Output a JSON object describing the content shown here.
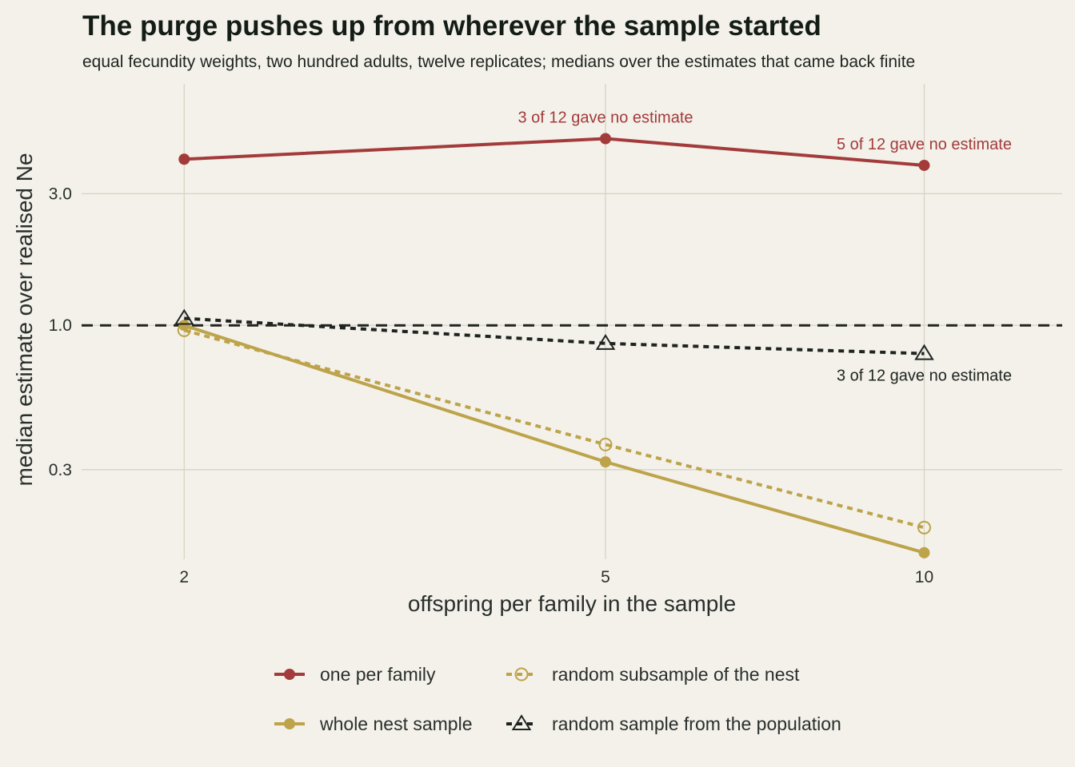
{
  "title": "The purge pushes up from wherever the sample started",
  "subtitle": "equal fecundity weights, two hundred adults, twelve replicates; medians over the estimates that came back finite",
  "chart_data": {
    "type": "line",
    "xlabel": "offspring per family in the sample",
    "ylabel": "median estimate over realised Ne",
    "x": [
      2,
      5,
      10
    ],
    "x_ticks": [
      2,
      5,
      10
    ],
    "x_tick_labels": [
      "2",
      "5",
      "10"
    ],
    "x_scale": "log",
    "xlim": [
      1.6,
      13.5
    ],
    "y_scale": "log",
    "ylim": [
      0.142,
      7.5
    ],
    "y_ticks": [
      0.3,
      1.0,
      3.0
    ],
    "y_tick_labels": [
      "0.3",
      "1.0",
      "3.0"
    ],
    "reference_line": {
      "y": 1.0,
      "style": "dashed"
    },
    "grid": true,
    "legend_position": "bottom",
    "series": [
      {
        "name": "one per family",
        "values": [
          4.0,
          4.75,
          3.8
        ],
        "color": "#a33b3b",
        "dash": "solid",
        "marker": "filled-circle"
      },
      {
        "name": "whole nest sample",
        "values": [
          1.0,
          0.32,
          0.15
        ],
        "color": "#bda34a",
        "dash": "solid",
        "marker": "filled-circle"
      },
      {
        "name": "random subsample of the nest",
        "values": [
          0.96,
          0.37,
          0.185
        ],
        "color": "#bda34a",
        "dash": "dotted",
        "marker": "open-circle"
      },
      {
        "name": "random sample from the population",
        "values": [
          1.06,
          0.86,
          0.79
        ],
        "color": "#1f2420",
        "dash": "dotted",
        "marker": "open-triangle"
      }
    ],
    "annotations": [
      {
        "text": "3 of 12 gave no estimate",
        "x": 5,
        "y": 4.75,
        "placement": "above",
        "color": "#a33b3b"
      },
      {
        "text": "5 of 12 gave no estimate",
        "x": 10,
        "y": 3.8,
        "placement": "above",
        "color": "#a33b3b"
      },
      {
        "text": "3 of 12 gave no estimate",
        "x": 10,
        "y": 0.79,
        "placement": "below",
        "color": "#1f2420"
      }
    ]
  },
  "colors": {
    "background": "#f3f1ea",
    "grid": "#d6d4c4",
    "text": "#2a2f2b"
  }
}
